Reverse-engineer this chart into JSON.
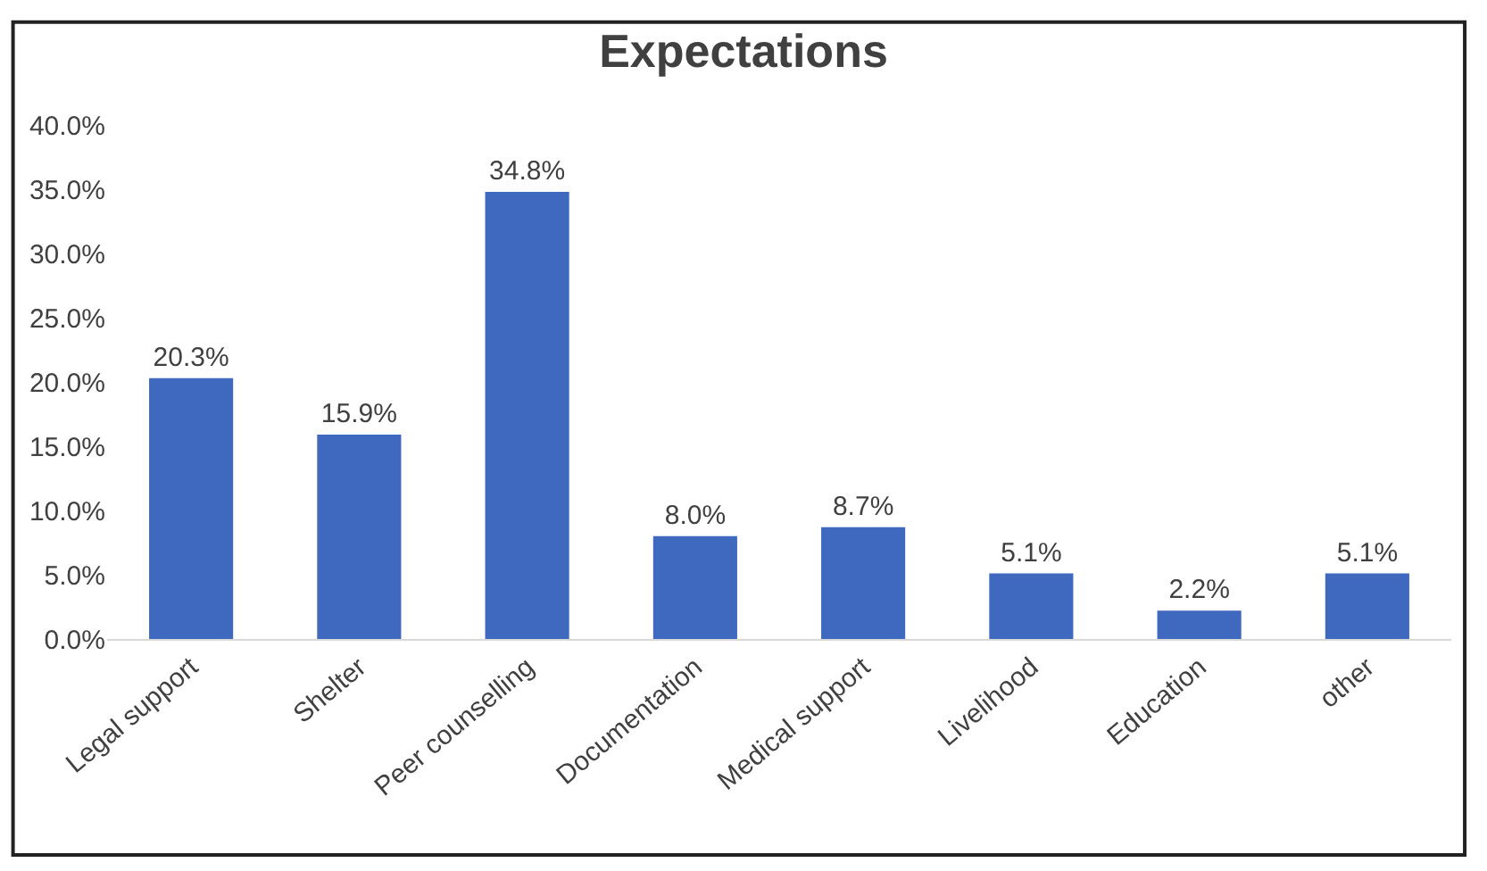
{
  "chart_data": {
    "type": "bar",
    "title": "Expectations",
    "categories": [
      "Legal support",
      "Shelter",
      "Peer counselling",
      "Documentation",
      "Medical support",
      "Livelihood",
      "Education",
      "other"
    ],
    "values": [
      20.3,
      15.9,
      34.8,
      8.0,
      8.7,
      5.1,
      2.2,
      5.1
    ],
    "value_labels": [
      "20.3%",
      "15.9%",
      "34.8%",
      "8.0%",
      "8.7%",
      "5.1%",
      "2.2%",
      "5.1%"
    ],
    "color": "#3f68bf",
    "ylim": [
      0,
      40
    ],
    "yticks": [
      {
        "value": 0,
        "label": "0.0%"
      },
      {
        "value": 5,
        "label": "5.0%"
      },
      {
        "value": 10,
        "label": "10.0%"
      },
      {
        "value": 15,
        "label": "15.0%"
      },
      {
        "value": 20,
        "label": "20.0%"
      },
      {
        "value": 25,
        "label": "25.0%"
      },
      {
        "value": 30,
        "label": "30.0%"
      },
      {
        "value": 35,
        "label": "35.0%"
      },
      {
        "value": 40,
        "label": "40.0%"
      }
    ],
    "grid": false
  }
}
